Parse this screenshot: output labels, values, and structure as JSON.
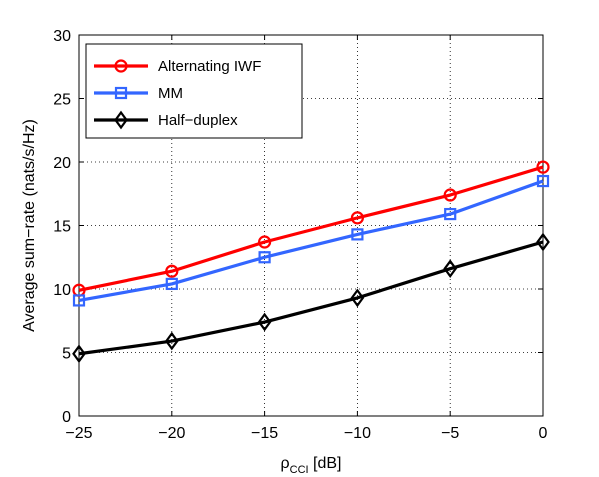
{
  "chart_data": {
    "type": "line",
    "xlabel": "ρ",
    "xlabel_sub": "CCI",
    "xlabel_unit": " [dB]",
    "ylabel": "Average sum−rate (nats/s/Hz)",
    "x": [
      -25,
      -20,
      -15,
      -10,
      -5,
      0
    ],
    "xlim": [
      -25,
      0
    ],
    "ylim": [
      0,
      30
    ],
    "xticks": [
      -25,
      -20,
      -15,
      -10,
      -5,
      0
    ],
    "xtick_labels": [
      "−25",
      "−20",
      "−15",
      "−10",
      "−5",
      "0"
    ],
    "yticks": [
      0,
      5,
      10,
      15,
      20,
      25,
      30
    ],
    "ytick_labels": [
      "0",
      "5",
      "10",
      "15",
      "20",
      "25",
      "30"
    ],
    "grid": true,
    "legend_position": "top-left",
    "series": [
      {
        "name": "Alternating IWF",
        "values": [
          9.9,
          11.4,
          13.7,
          15.6,
          17.4,
          19.6
        ],
        "color": "#ff0000",
        "marker": "circle"
      },
      {
        "name": "MM",
        "values": [
          9.1,
          10.4,
          12.5,
          14.3,
          15.9,
          18.5
        ],
        "color": "#3366ff",
        "marker": "square"
      },
      {
        "name": "Half−duplex",
        "values": [
          4.9,
          5.9,
          7.4,
          9.3,
          11.6,
          13.7
        ],
        "color": "#000000",
        "marker": "diamond"
      }
    ]
  }
}
